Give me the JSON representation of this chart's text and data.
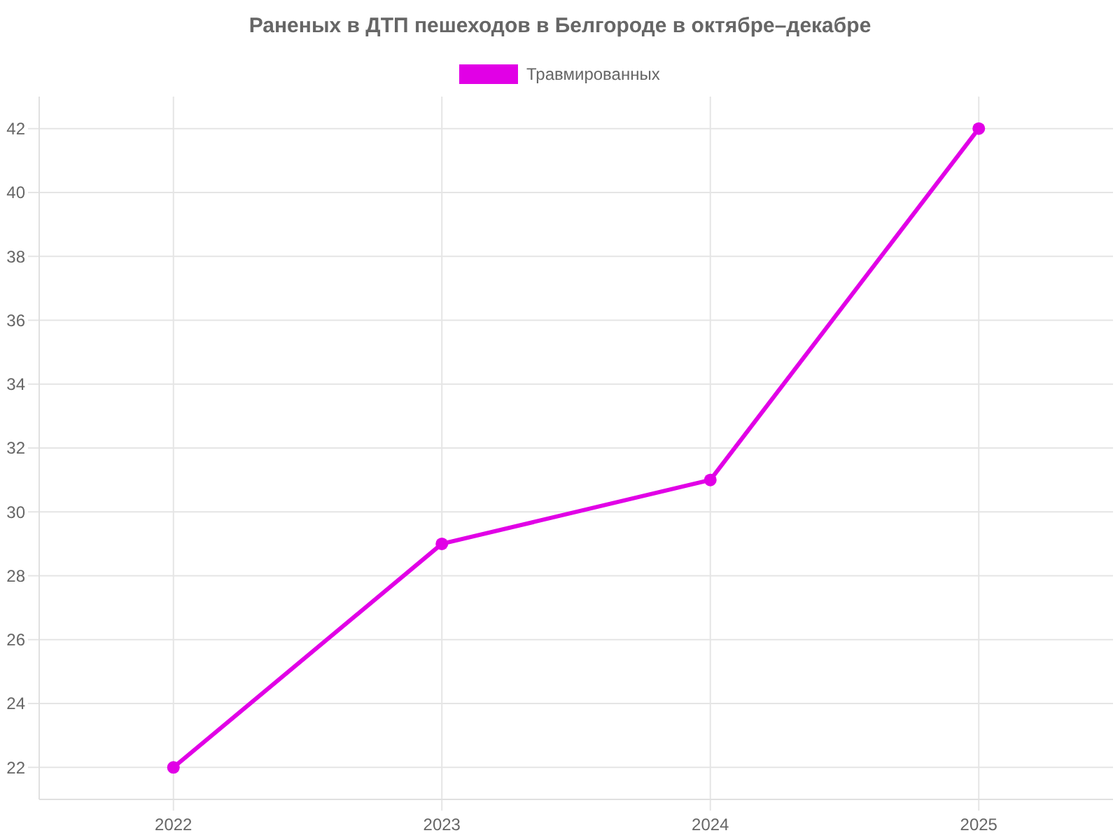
{
  "chart_data": {
    "type": "line",
    "title": "Раненых в ДТП пешеходов в Белгороде в октябре–декабре",
    "categories": [
      "2022",
      "2023",
      "2024",
      "2025"
    ],
    "series": [
      {
        "name": "Травмированных",
        "color": "#e100e6",
        "values": [
          22,
          29,
          31,
          42
        ]
      }
    ],
    "ylim": [
      21,
      43
    ],
    "yticks": [
      22,
      24,
      26,
      28,
      30,
      32,
      34,
      36,
      38,
      40,
      42
    ],
    "grid": true,
    "legend": "top",
    "marker": "circle",
    "line_style": "solid"
  }
}
